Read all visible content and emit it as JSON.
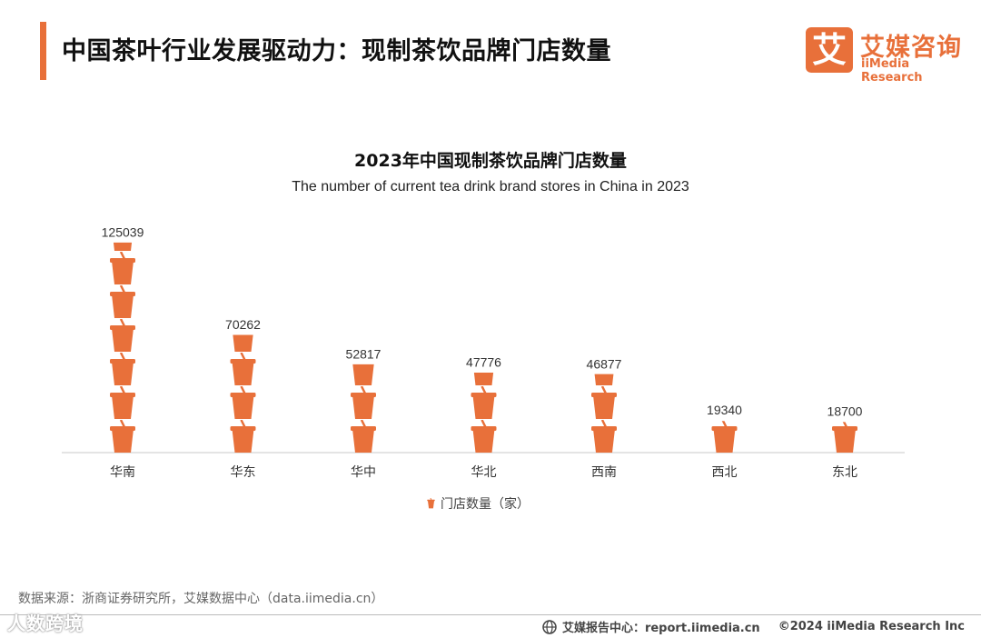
{
  "page": {
    "title": "中国茶叶行业发展驱动力：现制茶饮品牌门店数量"
  },
  "logo": {
    "mark": "艾",
    "cn": "艾媒咨询",
    "en": "iiMedia Research"
  },
  "chart_data": {
    "type": "bar",
    "title": "2023年中国现制茶饮品牌门店数量",
    "subtitle": "The number of current tea drink brand stores in China in 2023",
    "categories": [
      "华南",
      "华东",
      "华中",
      "华北",
      "西南",
      "西北",
      "东北"
    ],
    "values": [
      125039,
      70262,
      52817,
      47776,
      46877,
      19340,
      18700
    ],
    "series_name": "门店数量（家）",
    "xlabel": "",
    "ylabel": "",
    "legend_position": "bottom",
    "accent_color": "#e8703a"
  },
  "footer": {
    "source": "数据来源：浙商证券研究所，艾媒数据中心（data.iimedia.cn）",
    "report_center": "艾媒报告中心：report.iimedia.cn",
    "copyright": "©2024  iiMedia Research  Inc",
    "watermark": "人数跨境"
  }
}
